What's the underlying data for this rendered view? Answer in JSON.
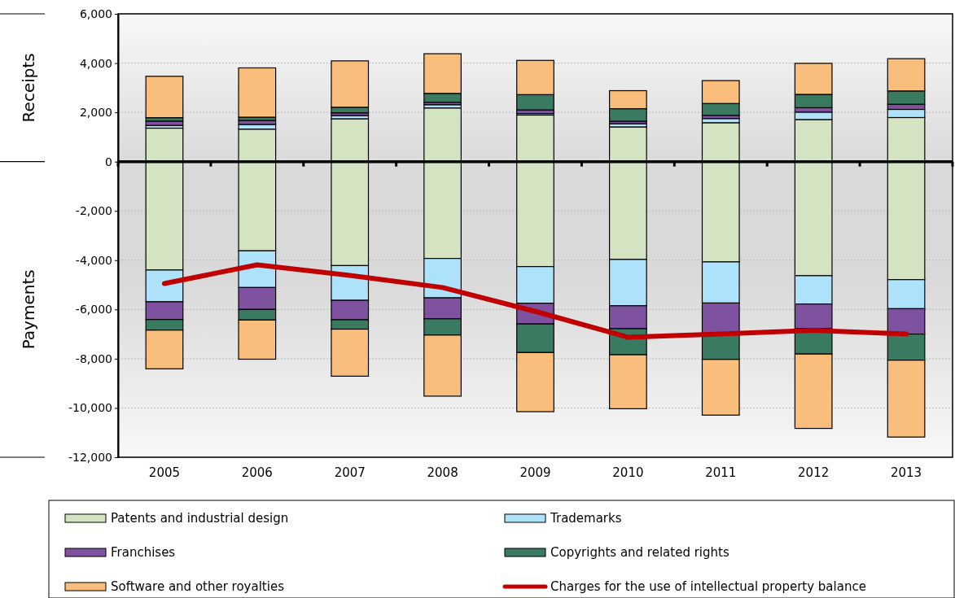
{
  "chart_data": {
    "type": "bar",
    "stacked": true,
    "categories": [
      "2005",
      "2006",
      "2007",
      "2008",
      "2009",
      "2010",
      "2011",
      "2012",
      "2013"
    ],
    "series": [
      {
        "name": "Patents and industrial design",
        "color": "#d4e4c2",
        "values": [
          1360,
          1320,
          1740,
          2180,
          1890,
          1410,
          1580,
          1710,
          1790
        ]
      },
      {
        "name": "Trademarks",
        "color": "#aee2fb",
        "values": [
          110,
          190,
          130,
          130,
          60,
          130,
          170,
          300,
          330
        ]
      },
      {
        "name": "Franchises",
        "color": "#7f52a0",
        "values": [
          175,
          165,
          110,
          100,
          150,
          100,
          130,
          180,
          210
        ]
      },
      {
        "name": "Copyrights and related rights",
        "color": "#3a7a60",
        "values": [
          140,
          130,
          230,
          360,
          620,
          510,
          480,
          540,
          540
        ]
      },
      {
        "name": "Software and other royalties",
        "color": "#f9be7b",
        "values": [
          1680,
          2000,
          1880,
          1610,
          1390,
          730,
          930,
          1260,
          1310
        ]
      },
      {
        "color": "#d4e4c2",
        "values": [
          -4400,
          -3620,
          -4220,
          -3930,
          -4260,
          -3970,
          -4070,
          -4630,
          -4790
        ]
      },
      {
        "color": "#aee2fb",
        "values": [
          -1290,
          -1490,
          -1410,
          -1600,
          -1490,
          -1880,
          -1670,
          -1150,
          -1180
        ]
      },
      {
        "color": "#7f52a0",
        "values": [
          -720,
          -890,
          -790,
          -850,
          -840,
          -930,
          -1280,
          -1000,
          -1030
        ]
      },
      {
        "color": "#3a7a60",
        "values": [
          -430,
          -430,
          -380,
          -660,
          -1160,
          -1060,
          -1010,
          -1030,
          -1060
        ]
      },
      {
        "color": "#f9be7b",
        "values": [
          -1570,
          -1590,
          -1910,
          -2480,
          -2400,
          -2190,
          -2260,
          -3020,
          -3120
        ]
      },
      {
        "name": "Charges for the use of intellectual property balance",
        "type": "line",
        "color": "#c00000",
        "values": [
          -4950,
          -4190,
          -4620,
          -5110,
          -6080,
          -7130,
          -7000,
          -6850,
          -7000
        ]
      }
    ],
    "annotations": [
      "Receipts",
      "Payments"
    ],
    "ylim": [
      -12000,
      6000
    ],
    "yticks": [
      {
        "value": -12000,
        "label": "-12,000"
      },
      {
        "value": -10000,
        "label": "-10,000"
      },
      {
        "value": -8000,
        "label": "-8,000"
      },
      {
        "value": -6000,
        "label": "-6,000"
      },
      {
        "value": -4000,
        "label": "-4,000"
      },
      {
        "value": -2000,
        "label": "-2,000"
      },
      0,
      {
        "value": 2000,
        "label": "2,000"
      },
      {
        "value": 4000,
        "label": "4,000"
      },
      {
        "value": 6000,
        "label": "6,000"
      }
    ],
    "grid": "y",
    "legend": "bottom",
    "marker": "none",
    "line_style": "solid"
  }
}
